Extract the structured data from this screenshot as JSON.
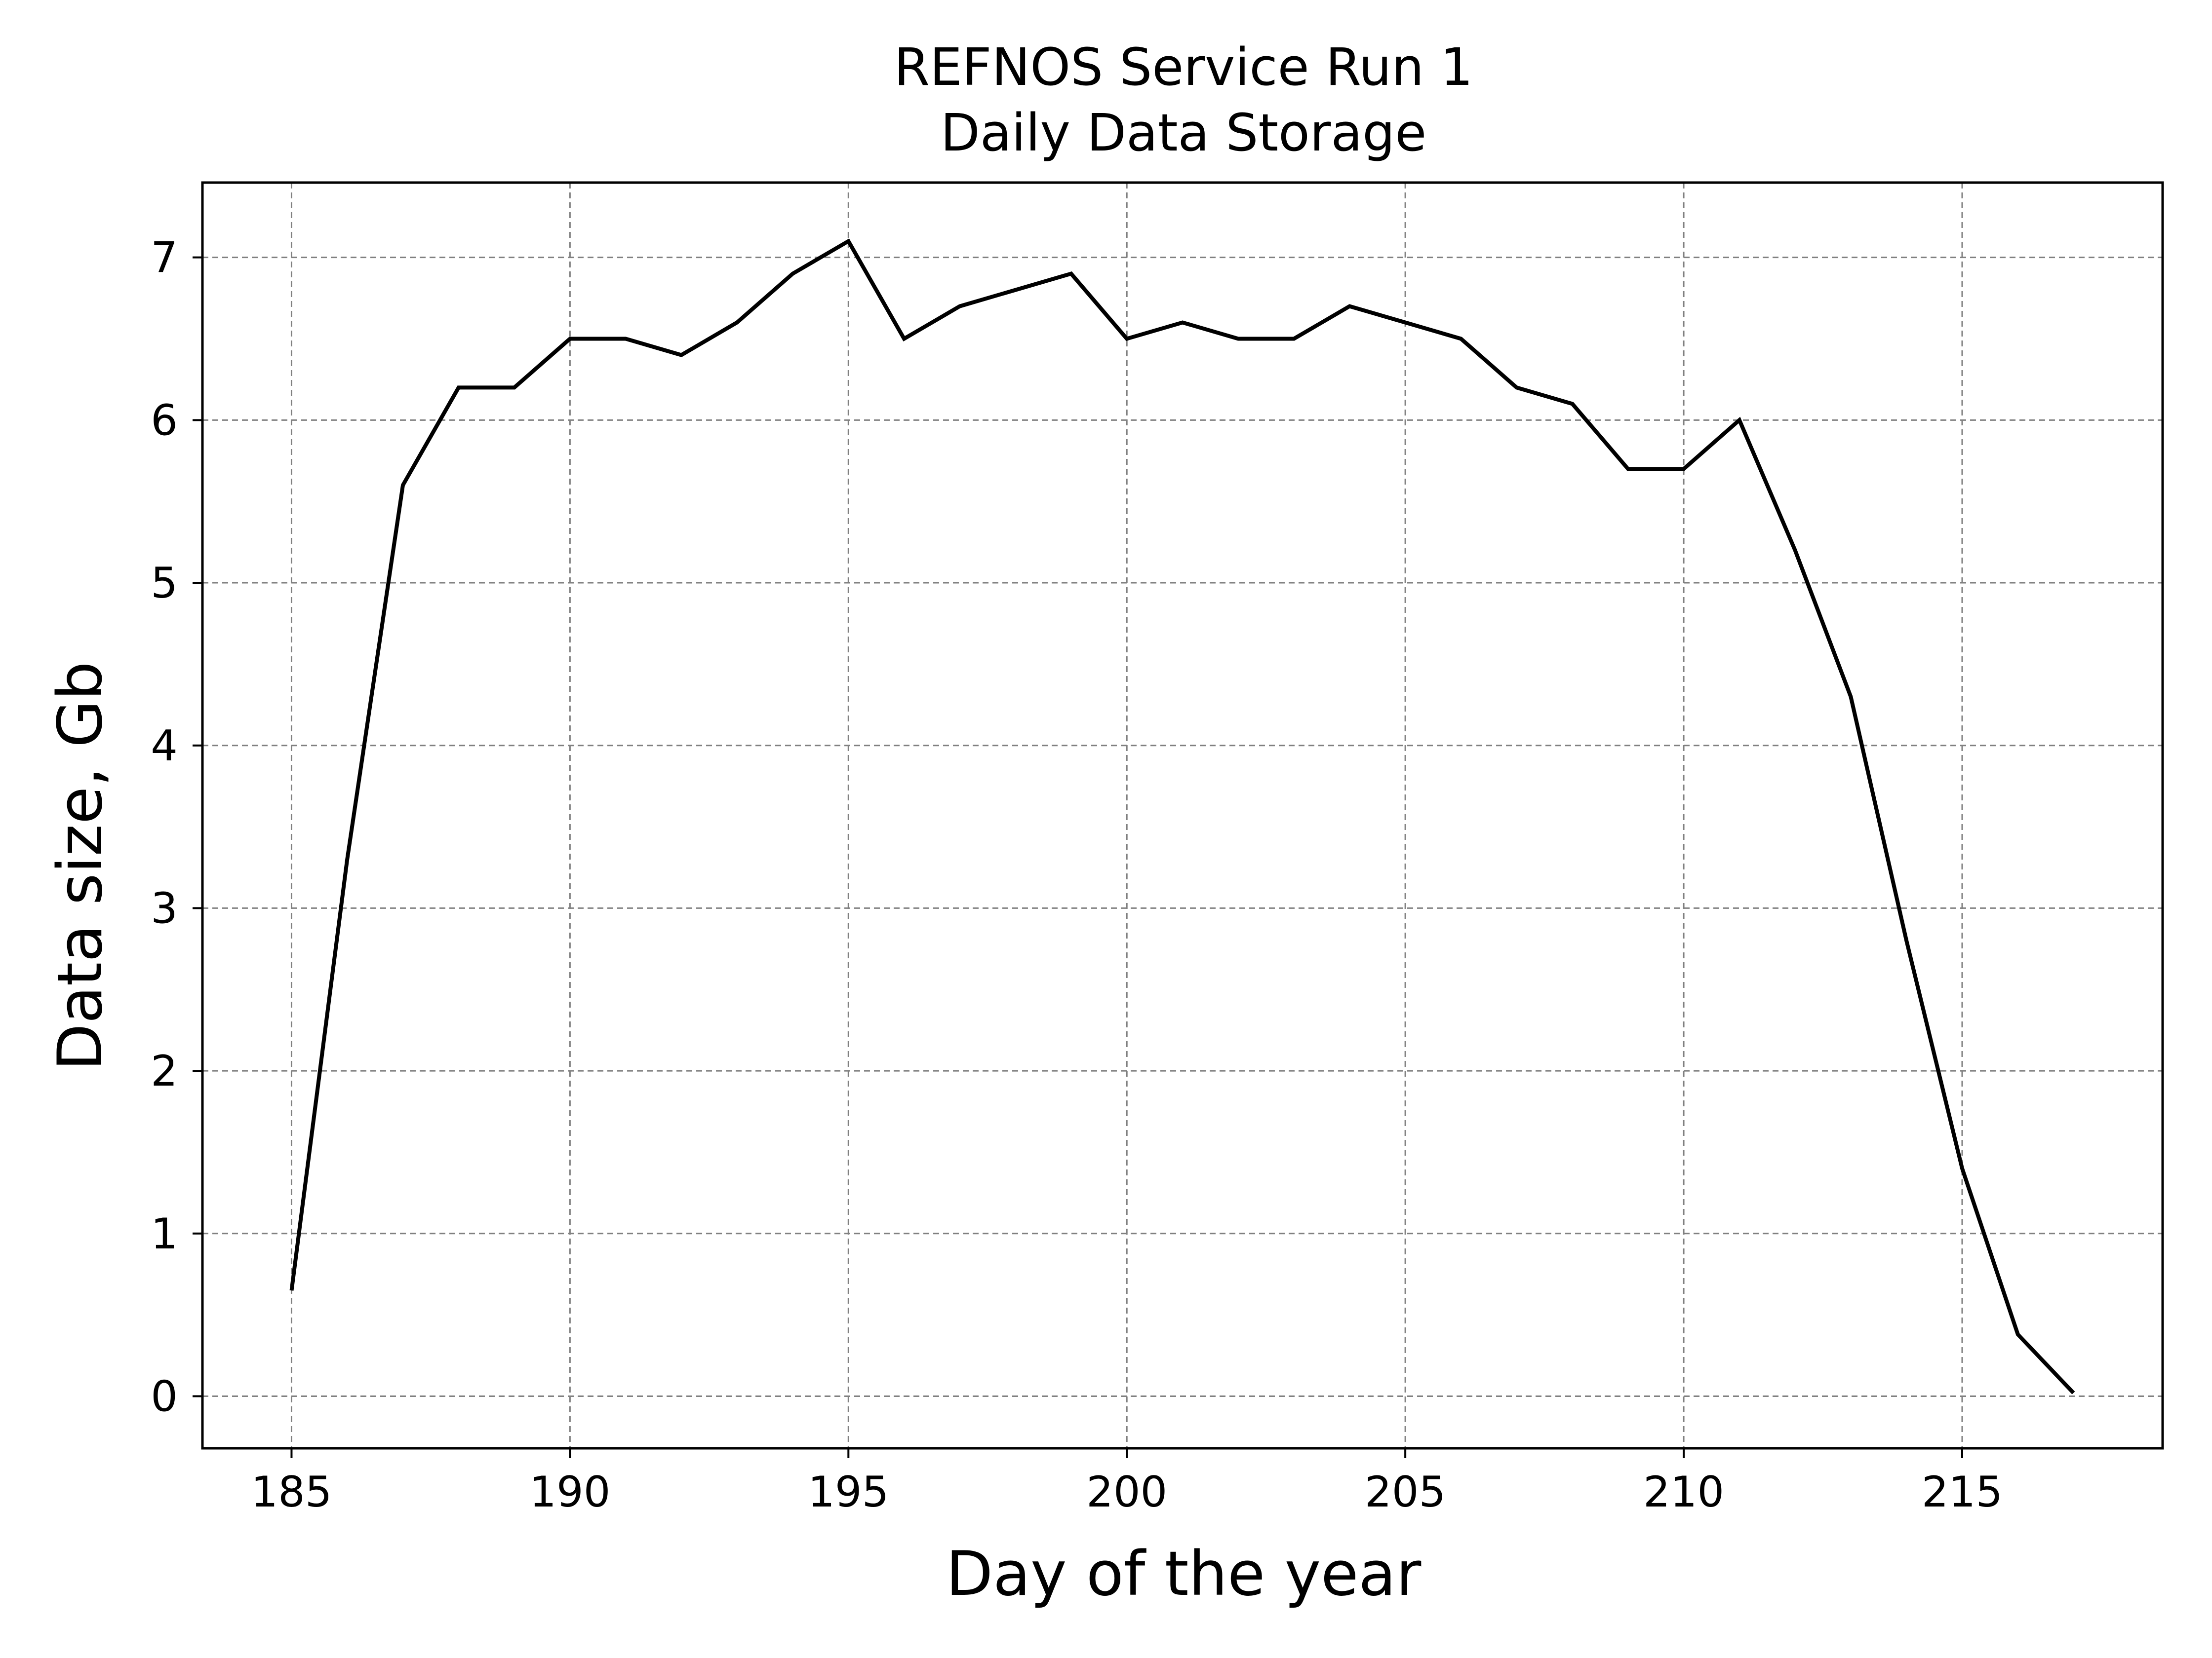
{
  "chart_data": {
    "type": "line",
    "title": "REFNOS Service Run 1",
    "subtitle": "Daily Data Storage",
    "xlabel": "Day of the year",
    "ylabel": "Data size, Gb",
    "xlim": [
      183.4,
      218.6
    ],
    "ylim": [
      -0.32,
      7.46
    ],
    "xticks": [
      185,
      190,
      195,
      200,
      205,
      210,
      215
    ],
    "yticks": [
      0,
      1,
      2,
      3,
      4,
      5,
      6,
      7
    ],
    "grid": true,
    "line_color": "#000000",
    "grid_color": "#808080",
    "series": [
      {
        "x": [
          185,
          186,
          187,
          188,
          189,
          190,
          191,
          192,
          193,
          194,
          195,
          196,
          197,
          198,
          199,
          200,
          201,
          202,
          203,
          204,
          205,
          206,
          207,
          208,
          209,
          210,
          211,
          212,
          213,
          214,
          215,
          216,
          217
        ],
        "values": [
          0.65,
          3.3,
          5.6,
          6.2,
          6.2,
          6.5,
          6.5,
          6.4,
          6.6,
          6.9,
          7.1,
          6.5,
          6.7,
          6.8,
          6.9,
          6.5,
          6.6,
          6.5,
          6.5,
          6.7,
          6.6,
          6.5,
          6.2,
          6.1,
          5.7,
          5.7,
          6.0,
          5.2,
          4.3,
          2.8,
          1.4,
          0.38,
          0.02
        ]
      }
    ]
  }
}
